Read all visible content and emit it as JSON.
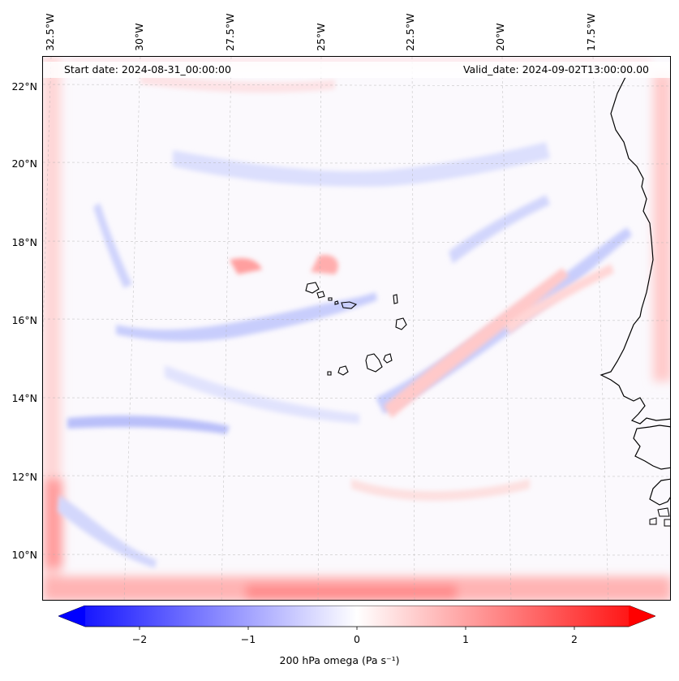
{
  "lon_labels": [
    "32.5°W",
    "30°W",
    "27.5°W",
    "25°W",
    "22.5°W",
    "20°W",
    "17.5°W"
  ],
  "lat_labels": [
    "22°N",
    "20°N",
    "18°N",
    "16°N",
    "14°N",
    "12°N",
    "10°N"
  ],
  "start_date": "Start date: 2024-08-31_00:00:00",
  "valid_date": "Valid_date: 2024-09-02T13:00:00.00",
  "colorbar": {
    "ticks": [
      "−2",
      "−1",
      "0",
      "1",
      "2"
    ],
    "label": "200 hPa omega (Pa s⁻¹)",
    "min_color": "#0000ff",
    "mid_color": "#ffffff",
    "max_color": "#ff0000"
  }
}
